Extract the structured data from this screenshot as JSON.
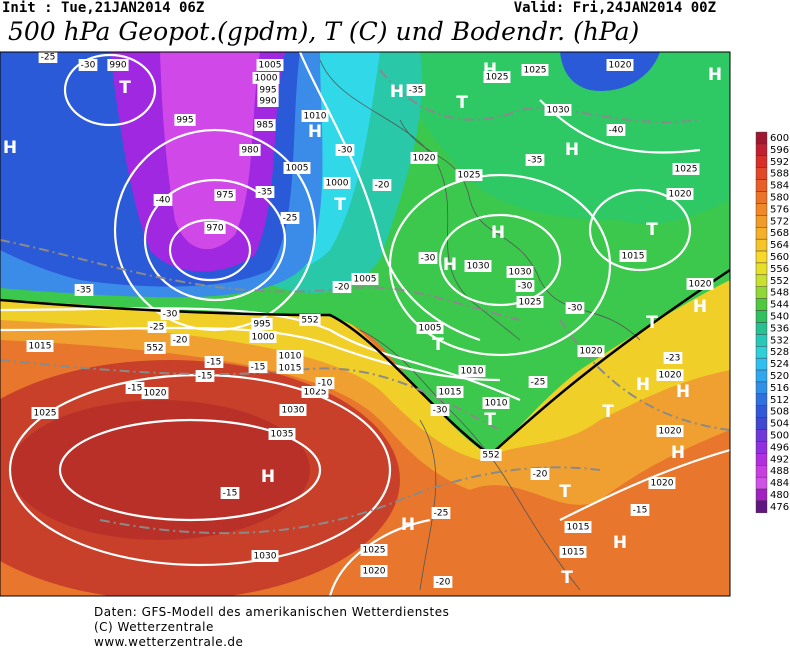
{
  "header": {
    "init": "Init : Tue,21JAN2014 06Z",
    "valid": "Valid: Fri,24JAN2014 00Z",
    "title": "500 hPa Geopot.(gpdm), T (C) und Bodendr. (hPa)"
  },
  "colorbar": {
    "levels": [
      600,
      596,
      592,
      588,
      584,
      580,
      576,
      572,
      568,
      564,
      560,
      556,
      552,
      548,
      544,
      540,
      536,
      532,
      528,
      524,
      520,
      516,
      512,
      508,
      504,
      500,
      496,
      492,
      488,
      484,
      480,
      476
    ]
  },
  "map_labels": [
    "H",
    "H",
    "T",
    "H",
    "H",
    "T",
    "H",
    "H",
    "T",
    "H",
    "T",
    "H",
    "H",
    "T",
    "T",
    "H",
    "T",
    "H",
    "T",
    "H",
    "H",
    "T",
    "H",
    "H",
    "T",
    "990",
    "1005",
    "1000",
    "995",
    "990",
    "995",
    "985",
    "980",
    "975",
    "970",
    "1010",
    "1005",
    "1000",
    "1020",
    "1025",
    "1030",
    "1025",
    "1025",
    "1020",
    "1025",
    "1020",
    "1015",
    "1020",
    "1005",
    "1005",
    "1010",
    "1015",
    "1010",
    "1030",
    "1030",
    "1025",
    "1020",
    "1020",
    "1020",
    "1020",
    "1015",
    "1015",
    "1025",
    "1020",
    "1030",
    "1035",
    "1030",
    "1025",
    "1020",
    "1015",
    "1015",
    "1010",
    "1000",
    "995",
    "1025",
    "-25",
    "-30",
    "-40",
    "-35",
    "-25",
    "-35",
    "-30",
    "-25",
    "-20",
    "-15",
    "-15",
    "-15",
    "-15",
    "-10",
    "-20",
    "-30",
    "-20",
    "-35",
    "-30",
    "-35",
    "-30",
    "-40",
    "-30",
    "-25",
    "-23",
    "-30",
    "-20",
    "-25",
    "-15",
    "-20",
    "-15",
    "552",
    "552",
    "552"
  ],
  "footer": {
    "source": "Daten: GFS-Modell des amerikanischen Wetterdienstes",
    "copyright": "(C) Wetterzentrale",
    "url": "www.wetterzentrale.de"
  }
}
